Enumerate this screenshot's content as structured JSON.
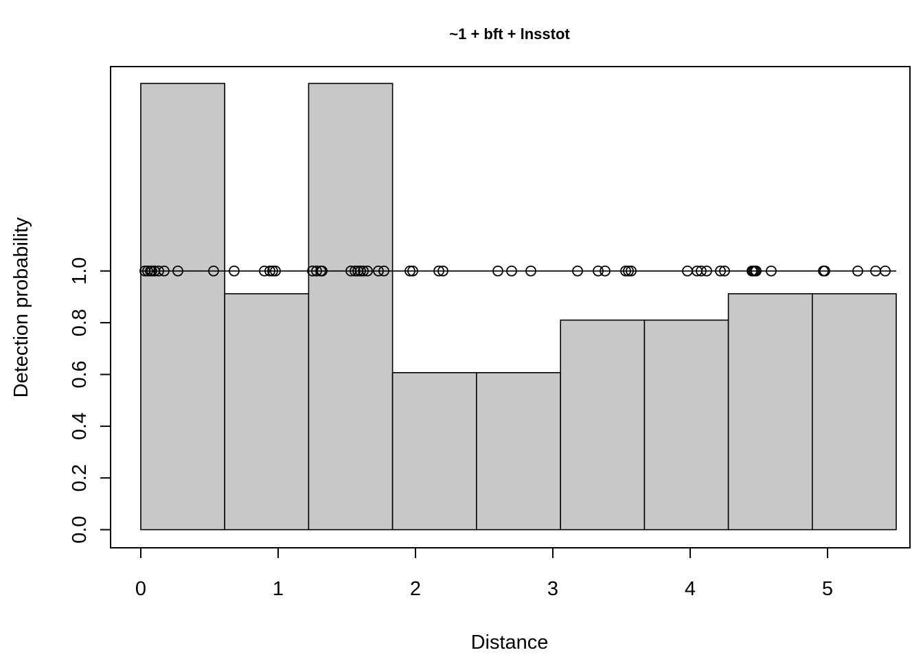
{
  "chart_data": {
    "type": "bar",
    "title": "~1 + bft + lnsstot",
    "xlabel": "Distance",
    "ylabel": "Detection probability",
    "xlim": [
      -0.22,
      5.6
    ],
    "ylim": [
      -0.07,
      1.79
    ],
    "x_ticks": [
      "0",
      "1",
      "2",
      "3",
      "4",
      "5"
    ],
    "y_ticks": [
      "0.0",
      "0.2",
      "0.4",
      "0.6",
      "0.8",
      "1.0"
    ],
    "grid": false,
    "histogram": {
      "bin_edges": [
        0,
        0.611,
        1.222,
        1.833,
        2.444,
        3.056,
        3.667,
        4.278,
        4.889,
        5.5
      ],
      "values": [
        1.725,
        0.912,
        1.725,
        0.607,
        0.607,
        0.81,
        0.81,
        0.912,
        0.912
      ],
      "fill": "#c8c8c8"
    },
    "fitted_line": {
      "x": [
        0,
        5.5
      ],
      "y": [
        1.0,
        1.0
      ]
    },
    "points": {
      "y": 1.0,
      "x": [
        0.03,
        0.05,
        0.07,
        0.08,
        0.1,
        0.13,
        0.17,
        0.27,
        0.53,
        0.68,
        0.9,
        0.94,
        0.96,
        0.98,
        1.25,
        1.28,
        1.31,
        1.32,
        1.53,
        1.56,
        1.58,
        1.6,
        1.62,
        1.65,
        1.73,
        1.77,
        1.96,
        1.98,
        2.17,
        2.2,
        2.6,
        2.7,
        2.84,
        3.18,
        3.33,
        3.38,
        3.53,
        3.55,
        3.57,
        3.98,
        4.05,
        4.08,
        4.12,
        4.22,
        4.25,
        4.45,
        4.46,
        4.47,
        4.48,
        4.59,
        4.97,
        4.98,
        5.22,
        5.35,
        5.42
      ]
    }
  }
}
